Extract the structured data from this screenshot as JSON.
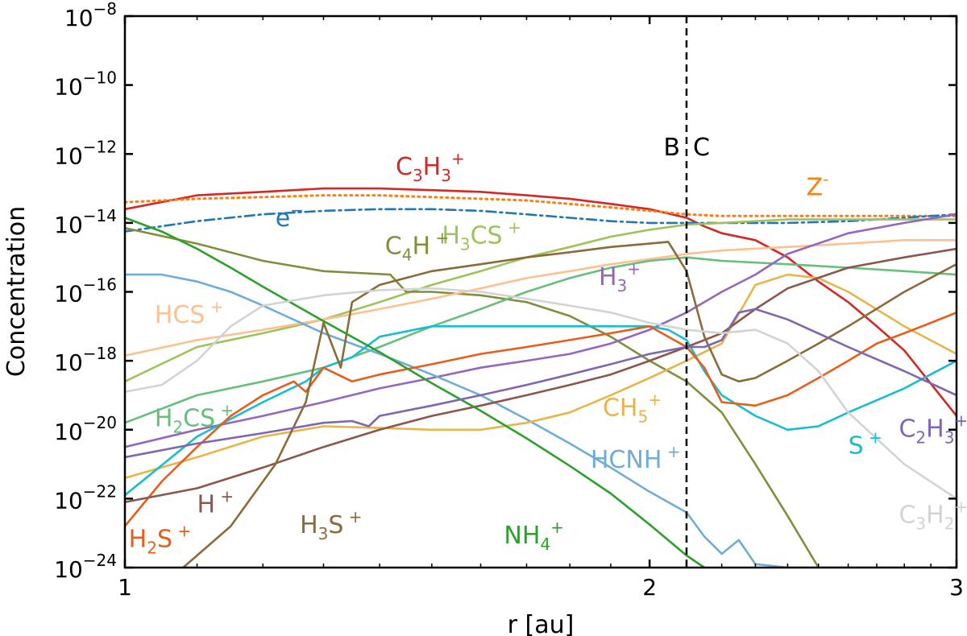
{
  "chart_data": {
    "type": "line",
    "title": "",
    "xlabel": "r [au]",
    "ylabel": "Concentration",
    "xscale": "log",
    "yscale": "log",
    "xlim": [
      1,
      3
    ],
    "ylim": [
      1e-24,
      1e-08
    ],
    "grid": false,
    "legend": "inline labels",
    "x_ticks": [
      {
        "value": 1,
        "label": "1"
      },
      {
        "value": 2,
        "label": "2"
      },
      {
        "value": 3,
        "label": "3"
      }
    ],
    "y_ticks": [
      {
        "value": -24,
        "base": "10",
        "exp": "−24"
      },
      {
        "value": -22,
        "base": "10",
        "exp": "−22"
      },
      {
        "value": -20,
        "base": "10",
        "exp": "−20"
      },
      {
        "value": -18,
        "base": "10",
        "exp": "−18"
      },
      {
        "value": -16,
        "base": "10",
        "exp": "−16"
      },
      {
        "value": -14,
        "base": "10",
        "exp": "−14"
      },
      {
        "value": -12,
        "base": "10",
        "exp": "−12"
      },
      {
        "value": -10,
        "base": "10",
        "exp": "−10"
      },
      {
        "value": -8,
        "base": "10",
        "exp": "−8"
      }
    ],
    "boundary": {
      "x": 2.1,
      "left_label": "B",
      "right_label": "C"
    },
    "series": [
      {
        "name": "C3H3+",
        "color": "#d62728",
        "style": "solid",
        "label": [
          {
            "t": "C"
          },
          {
            "t": "3",
            "sub": true
          },
          {
            "t": "H"
          },
          {
            "t": "3",
            "sub": true
          },
          {
            "t": "+",
            "sup": true
          }
        ],
        "label_at": {
          "x": 1.43,
          "logy": -12.6
        },
        "x": [
          1,
          1.1,
          1.2,
          1.3,
          1.4,
          1.5,
          1.6,
          1.7,
          1.8,
          1.9,
          2.0,
          2.1,
          2.15,
          2.2,
          2.3,
          2.4,
          2.5,
          2.6,
          2.7,
          2.8,
          3.0
        ],
        "logy": [
          -13.6,
          -13.2,
          -13.1,
          -13.0,
          -13.0,
          -13.05,
          -13.1,
          -13.2,
          -13.3,
          -13.45,
          -13.6,
          -13.85,
          -14.1,
          -14.3,
          -14.5,
          -15.0,
          -15.7,
          -16.3,
          -17.0,
          -17.7,
          -19.6
        ]
      },
      {
        "name": "Z-",
        "color": "#ff7f0e",
        "style": "dotted",
        "label": [
          {
            "t": "Z"
          },
          {
            "t": "-",
            "sup": true
          }
        ],
        "label_at": {
          "x": 2.46,
          "logy": -13.2
        },
        "x": [
          1,
          1.1,
          1.2,
          1.3,
          1.4,
          1.5,
          1.6,
          1.7,
          1.8,
          1.9,
          2.0,
          2.1,
          2.2,
          2.4,
          2.6,
          2.8,
          3.0
        ],
        "logy": [
          -13.4,
          -13.3,
          -13.25,
          -13.2,
          -13.2,
          -13.25,
          -13.3,
          -13.35,
          -13.45,
          -13.55,
          -13.65,
          -13.75,
          -13.8,
          -13.8,
          -13.8,
          -13.8,
          -13.8
        ]
      },
      {
        "name": "e-",
        "color": "#1f77b4",
        "style": "dashdot",
        "label": [
          {
            "t": "e"
          },
          {
            "t": "−",
            "sup": true
          }
        ],
        "label_at": {
          "x": 1.22,
          "logy": -14.1
        },
        "x": [
          1,
          1.1,
          1.2,
          1.3,
          1.4,
          1.5,
          1.6,
          1.7,
          1.8,
          1.9,
          2.0,
          2.1,
          2.2,
          2.3,
          2.4,
          2.6,
          2.8,
          3.0
        ],
        "logy": [
          -14.25,
          -13.95,
          -13.75,
          -13.65,
          -13.6,
          -13.6,
          -13.65,
          -13.75,
          -13.85,
          -13.95,
          -14.0,
          -14.0,
          -14.0,
          -14.0,
          -14.0,
          -13.95,
          -13.85,
          -13.75
        ]
      },
      {
        "name": "H3CS+",
        "color": "#9dc35a",
        "style": "solid",
        "label": [
          {
            "t": "H"
          },
          {
            "t": "3",
            "sub": true
          },
          {
            "t": "CS"
          },
          {
            "t": " +",
            "sup": true
          }
        ],
        "label_at": {
          "x": 1.52,
          "logy": -14.6
        },
        "x": [
          1,
          1.1,
          1.2,
          1.3,
          1.4,
          1.5,
          1.6,
          1.7,
          1.8,
          1.9,
          2.0,
          2.1,
          2.2,
          2.4,
          2.6,
          2.8,
          3.0
        ],
        "logy": [
          -18.6,
          -17.6,
          -17.2,
          -16.8,
          -16.3,
          -15.8,
          -15.4,
          -15.0,
          -14.7,
          -14.4,
          -14.2,
          -14.05,
          -14.0,
          -13.9,
          -13.9,
          -13.9,
          -13.9
        ]
      },
      {
        "name": "C4H+",
        "color": "#7f8f3c",
        "style": "solid",
        "label": [
          {
            "t": "C"
          },
          {
            "t": "4",
            "sub": true
          },
          {
            "t": "H"
          },
          {
            "t": " +",
            "sup": true
          }
        ],
        "label_at": {
          "x": 1.41,
          "logy": -14.9
        },
        "x": [
          1,
          1.1,
          1.2,
          1.3,
          1.36,
          1.42,
          1.45,
          1.5,
          1.6,
          1.7,
          1.8,
          1.9,
          2.0,
          2.1,
          2.2,
          2.3,
          2.4,
          2.5,
          3.0
        ],
        "logy": [
          -14.15,
          -14.6,
          -15.1,
          -15.4,
          -15.45,
          -15.5,
          -16.0,
          -16.0,
          -16.1,
          -16.3,
          -16.7,
          -17.3,
          -18.0,
          -18.6,
          -19.5,
          -21.0,
          -22.5,
          -24.0,
          -24.0
        ]
      },
      {
        "name": "HCS+",
        "color": "#fdc190",
        "style": "solid",
        "label": [
          {
            "t": "HCS"
          },
          {
            "t": " +",
            "sup": true
          }
        ],
        "label_at": {
          "x": 1.04,
          "logy": -16.9
        },
        "x": [
          1,
          1.1,
          1.2,
          1.3,
          1.4,
          1.5,
          1.6,
          1.7,
          1.8,
          1.9,
          2.0,
          2.1,
          2.2,
          2.4,
          2.6,
          2.8,
          3.0
        ],
        "logy": [
          -17.85,
          -17.4,
          -17.1,
          -16.8,
          -16.5,
          -16.2,
          -15.9,
          -15.6,
          -15.4,
          -15.2,
          -15.05,
          -14.9,
          -14.8,
          -14.7,
          -14.6,
          -14.5,
          -14.5
        ]
      },
      {
        "name": "H2CS+",
        "color": "#67bf7c",
        "style": "solid",
        "label": [
          {
            "t": "H"
          },
          {
            "t": "2",
            "sub": true
          },
          {
            "t": "CS"
          },
          {
            "t": " +",
            "sup": true
          }
        ],
        "label_at": {
          "x": 1.04,
          "logy": -19.9
        },
        "x": [
          1,
          1.1,
          1.2,
          1.3,
          1.4,
          1.5,
          1.6,
          1.7,
          1.8,
          1.9,
          2.0,
          2.1,
          2.2,
          2.4,
          2.6,
          2.8,
          3.0
        ],
        "logy": [
          -19.8,
          -19.0,
          -18.6,
          -18.2,
          -17.6,
          -17.0,
          -16.5,
          -16.0,
          -15.6,
          -15.3,
          -15.1,
          -15.0,
          -15.1,
          -15.2,
          -15.3,
          -15.4,
          -15.5
        ]
      },
      {
        "name": "H3+",
        "color": "#9467bd",
        "style": "solid",
        "label": [
          {
            "t": "H"
          },
          {
            "t": "3",
            "sub": true
          },
          {
            "t": "+",
            "sup": true
          }
        ],
        "label_at": {
          "x": 1.87,
          "logy": -15.8
        },
        "x": [
          1,
          1.1,
          1.2,
          1.3,
          1.4,
          1.5,
          1.6,
          1.7,
          1.8,
          1.9,
          2.0,
          2.1,
          2.2,
          2.3,
          2.4,
          2.6,
          2.8,
          3.0
        ],
        "logy": [
          -20.5,
          -20.0,
          -19.6,
          -19.2,
          -18.8,
          -18.5,
          -18.2,
          -18.0,
          -17.8,
          -17.5,
          -17.1,
          -16.6,
          -16.0,
          -15.5,
          -14.9,
          -14.3,
          -14.0,
          -13.75
        ]
      },
      {
        "name": "HCNH+",
        "color": "#6fadd8",
        "style": "solid",
        "label": [
          {
            "t": "HCNH"
          },
          {
            "t": " +",
            "sup": true
          }
        ],
        "label_at": {
          "x": 1.85,
          "logy": -21.1
        },
        "x": [
          1,
          1.05,
          1.1,
          1.15,
          1.2,
          1.3,
          1.4,
          1.5,
          1.6,
          1.7,
          1.8,
          1.9,
          2.0,
          2.1,
          2.15,
          2.2,
          2.25,
          2.3,
          2.4,
          2.5
        ],
        "logy": [
          -15.5,
          -15.5,
          -15.7,
          -16.0,
          -16.4,
          -17.2,
          -17.8,
          -18.4,
          -19.0,
          -19.7,
          -20.4,
          -21.1,
          -21.8,
          -22.4,
          -23.1,
          -23.6,
          -23.2,
          -23.9,
          -24.0,
          -24.0
        ]
      },
      {
        "name": "CH5+",
        "color": "#e8b54a",
        "style": "solid",
        "label": [
          {
            "t": "CH"
          },
          {
            "t": "5",
            "sub": true
          },
          {
            "t": "+",
            "sup": true
          }
        ],
        "label_at": {
          "x": 1.88,
          "logy": -19.6
        },
        "x": [
          1,
          1.1,
          1.2,
          1.3,
          1.4,
          1.5,
          1.6,
          1.7,
          1.8,
          1.9,
          2.0,
          2.1,
          2.2,
          2.3,
          2.4,
          2.5,
          2.6,
          2.8,
          3.0
        ],
        "logy": [
          -21.4,
          -20.8,
          -20.2,
          -19.9,
          -19.95,
          -20.0,
          -20.0,
          -19.8,
          -19.5,
          -19.0,
          -18.5,
          -18.0,
          -17.5,
          -15.8,
          -15.5,
          -15.6,
          -16.0,
          -17.0,
          -17.8
        ]
      },
      {
        "name": "S+",
        "color": "#17becf",
        "style": "solid",
        "label": [
          {
            "t": "S"
          },
          {
            "t": " +",
            "sup": true
          }
        ],
        "label_at": {
          "x": 2.6,
          "logy": -20.7
        },
        "x": [
          1,
          1.1,
          1.2,
          1.27,
          1.3,
          1.35,
          1.4,
          1.5,
          1.6,
          1.7,
          1.8,
          1.9,
          2.0,
          2.05,
          2.1,
          2.15,
          2.2,
          2.3,
          2.4,
          2.5,
          2.6,
          2.8,
          3.0
        ],
        "logy": [
          -21.9,
          -20.2,
          -19.2,
          -18.6,
          -18.2,
          -17.9,
          -17.3,
          -17.0,
          -17.0,
          -17.0,
          -17.0,
          -17.0,
          -17.0,
          -17.1,
          -17.4,
          -18.3,
          -19.0,
          -19.6,
          -20.0,
          -19.9,
          -19.5,
          -18.8,
          -18.0
        ]
      },
      {
        "name": "H2S+",
        "color": "#e85d1a",
        "style": "solid",
        "label": [
          {
            "t": "H"
          },
          {
            "t": "2",
            "sub": true
          },
          {
            "t": "S"
          },
          {
            "t": " +",
            "sup": true
          }
        ],
        "label_at": {
          "x": 1.005,
          "logy": -23.4
        },
        "x": [
          1,
          1.05,
          1.1,
          1.15,
          1.2,
          1.25,
          1.27,
          1.3,
          1.35,
          1.4,
          1.5,
          1.6,
          1.7,
          1.8,
          1.9,
          2.0,
          2.1,
          2.15,
          2.2,
          2.3,
          2.4,
          2.5,
          2.6,
          2.7,
          2.8,
          2.9,
          3.0
        ],
        "logy": [
          -22.8,
          -21.5,
          -20.5,
          -19.6,
          -19.0,
          -18.6,
          -18.9,
          -18.2,
          -18.6,
          -18.4,
          -18.1,
          -17.8,
          -17.6,
          -17.4,
          -17.2,
          -17.0,
          -17.6,
          -18.2,
          -19.2,
          -19.3,
          -19.0,
          -18.5,
          -18.0,
          -17.5,
          -17.2,
          -16.9,
          -16.6
        ]
      },
      {
        "name": "H+",
        "color": "#8c564b",
        "style": "solid",
        "label": [
          {
            "t": "H"
          },
          {
            "t": " +",
            "sup": true
          }
        ],
        "label_at": {
          "x": 1.1,
          "logy": -22.4
        },
        "x": [
          1,
          1.1,
          1.2,
          1.3,
          1.4,
          1.5,
          1.6,
          1.7,
          1.8,
          1.9,
          2.0,
          2.1,
          2.2,
          2.3,
          2.4,
          2.6,
          2.8,
          3.0
        ],
        "logy": [
          -22.1,
          -21.7,
          -21.1,
          -20.5,
          -20.0,
          -19.6,
          -19.3,
          -19.0,
          -18.7,
          -18.4,
          -18.0,
          -17.6,
          -17.2,
          -16.5,
          -15.9,
          -15.3,
          -15.0,
          -14.75
        ]
      },
      {
        "name": "H3S+",
        "color": "#8b6b3a",
        "style": "solid",
        "label": [
          {
            "t": "H"
          },
          {
            "t": "3",
            "sub": true
          },
          {
            "t": "S"
          },
          {
            "t": " +",
            "sup": true
          }
        ],
        "label_at": {
          "x": 1.26,
          "logy": -23.0
        },
        "x": [
          1.08,
          1.15,
          1.22,
          1.27,
          1.3,
          1.33,
          1.35,
          1.4,
          1.5,
          1.6,
          1.7,
          1.8,
          1.9,
          2.0,
          2.05,
          2.1,
          2.15,
          2.2,
          2.25,
          2.3,
          2.4,
          2.5,
          2.6,
          2.8,
          3.0
        ],
        "logy": [
          -24.0,
          -22.8,
          -21.0,
          -19.2,
          -16.9,
          -18.2,
          -16.3,
          -15.8,
          -15.4,
          -15.2,
          -15.0,
          -14.85,
          -14.7,
          -14.6,
          -14.55,
          -15.4,
          -17.3,
          -18.4,
          -18.6,
          -18.5,
          -18.0,
          -17.5,
          -17.0,
          -16.0,
          -15.2
        ]
      },
      {
        "name": "NH4+",
        "color": "#2ca02c",
        "style": "solid",
        "label": [
          {
            "t": "NH"
          },
          {
            "t": "4",
            "sub": true
          },
          {
            "t": "+",
            "sup": true
          }
        ],
        "label_at": {
          "x": 1.65,
          "logy": -23.3
        },
        "x": [
          1,
          1.05,
          1.1,
          1.15,
          1.2,
          1.3,
          1.4,
          1.5,
          1.6,
          1.7,
          1.8,
          1.9,
          2.0,
          2.1,
          2.15
        ],
        "logy": [
          -13.85,
          -14.25,
          -14.75,
          -15.3,
          -15.85,
          -16.85,
          -17.75,
          -18.65,
          -19.45,
          -20.25,
          -21.05,
          -21.85,
          -22.75,
          -23.65,
          -24.0
        ]
      },
      {
        "name": "C2H3+",
        "color": "#7e66b0",
        "style": "solid",
        "label": [
          {
            "t": "C"
          },
          {
            "t": "2",
            "sub": true
          },
          {
            "t": "H"
          },
          {
            "t": "3",
            "sub": true
          },
          {
            "t": "+",
            "sup": true
          }
        ],
        "label_at": {
          "x": 2.78,
          "logy": -20.2
        },
        "x": [
          1,
          1.1,
          1.2,
          1.3,
          1.35,
          1.38,
          1.4,
          1.5,
          1.6,
          1.7,
          1.8,
          1.9,
          2.0,
          2.1,
          2.15,
          2.2,
          2.25,
          2.3,
          2.4,
          2.6,
          2.8,
          3.0
        ],
        "logy": [
          -20.8,
          -20.4,
          -20.1,
          -19.8,
          -19.75,
          -19.9,
          -19.6,
          -19.3,
          -19.0,
          -18.7,
          -18.4,
          -18.1,
          -17.8,
          -17.6,
          -17.6,
          -17.4,
          -16.6,
          -16.5,
          -16.8,
          -17.6,
          -18.3,
          -19.0
        ]
      },
      {
        "name": "C3H2+",
        "color": "#d3d3d3",
        "style": "solid",
        "label": [
          {
            "t": "C"
          },
          {
            "t": "3",
            "sub": true
          },
          {
            "t": "H"
          },
          {
            "t": "2",
            "sub": true
          },
          {
            "t": "+",
            "sup": true
          }
        ],
        "label_at": {
          "x": 2.78,
          "logy": -22.7
        },
        "x": [
          1,
          1.05,
          1.1,
          1.15,
          1.2,
          1.3,
          1.4,
          1.5,
          1.6,
          1.7,
          1.8,
          1.9,
          2.0,
          2.1,
          2.2,
          2.3,
          2.4,
          2.5,
          2.6,
          2.8,
          3.0
        ],
        "logy": [
          -18.9,
          -18.7,
          -18.0,
          -17.0,
          -16.4,
          -16.1,
          -15.95,
          -15.9,
          -16.0,
          -16.2,
          -16.4,
          -16.6,
          -16.9,
          -17.1,
          -17.2,
          -17.1,
          -17.5,
          -18.3,
          -19.5,
          -21.0,
          -22.0
        ]
      }
    ]
  }
}
